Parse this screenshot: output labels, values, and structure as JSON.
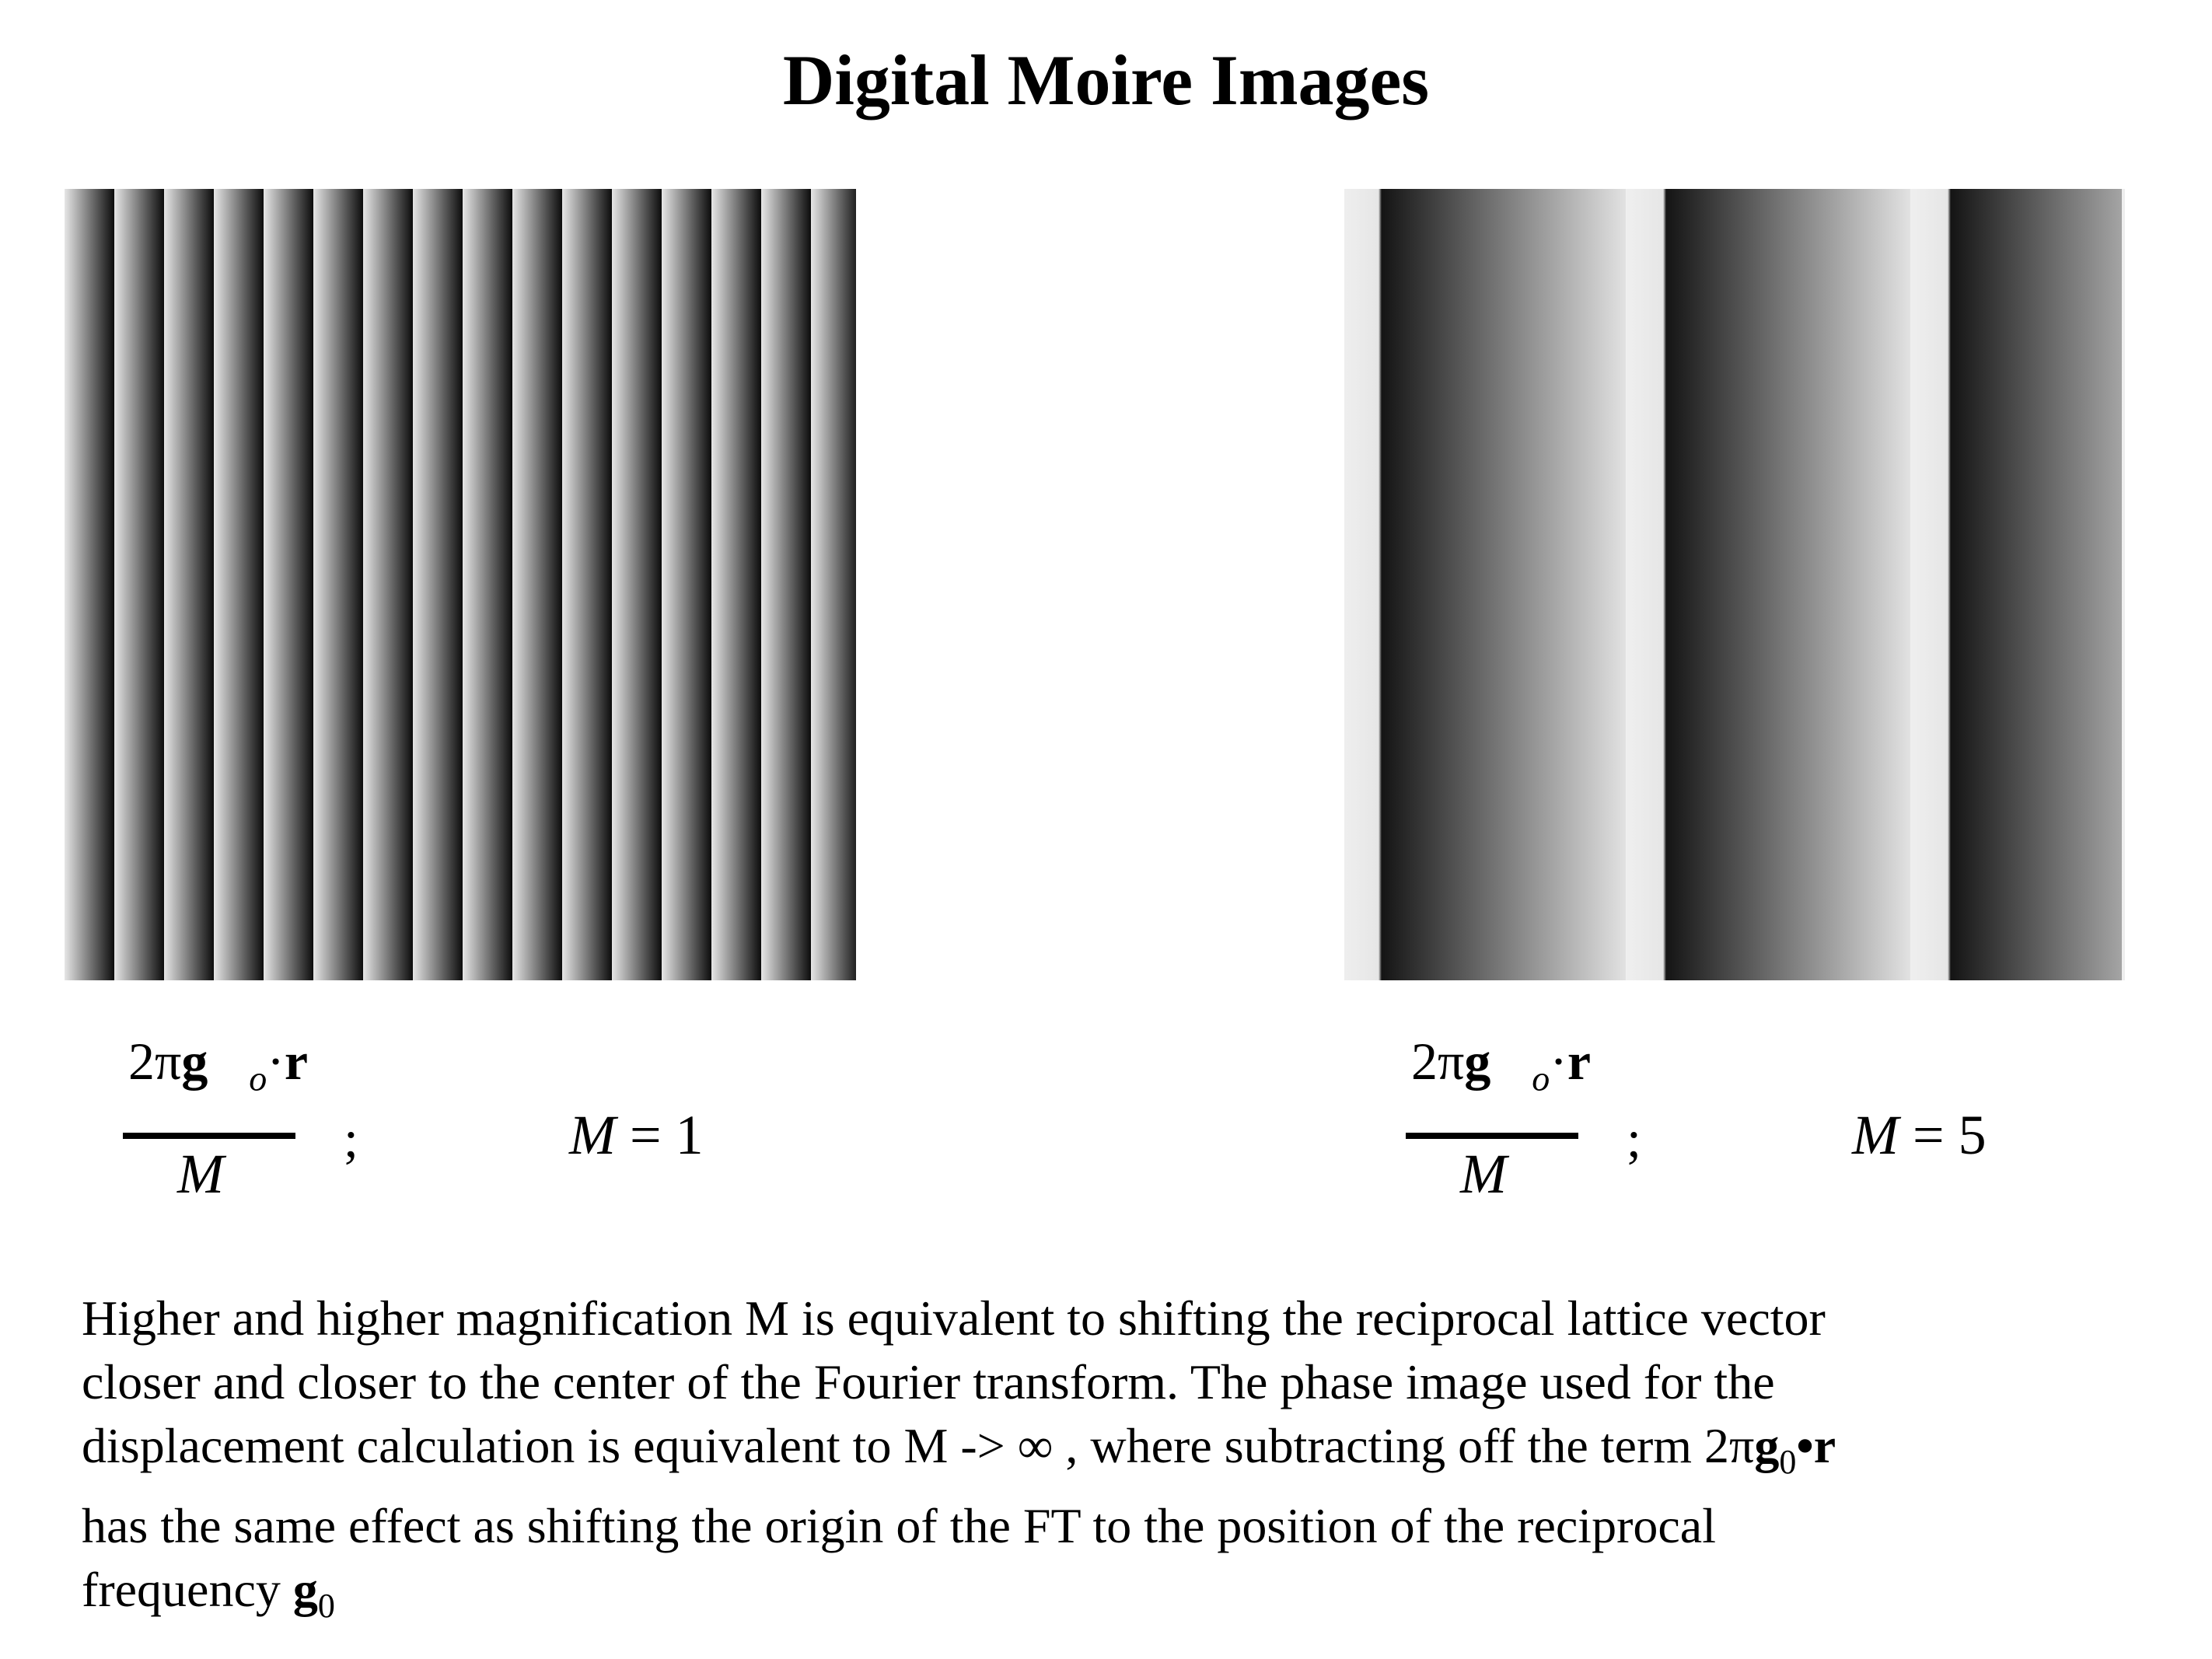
{
  "title": "Digital Moire Images",
  "panels": {
    "left": {
      "magnification_label": "1"
    },
    "right": {
      "magnification_label": "5"
    }
  },
  "formula": {
    "numerator_prefix": "2π",
    "vector_g": "g⃗",
    "subscript": "o",
    "dot": "·",
    "vector_r": "r⃗",
    "denominator": "M",
    "separator": ";",
    "m_symbol": "M",
    "equals": "="
  },
  "caption": {
    "line1": "Higher and higher magnification M is equivalent to shifting the reciprocal lattice vector",
    "line2": "closer and closer to the center of the Fourier transform. The phase image used for the",
    "line3_start": "displacement calculation is equivalent to M -> ∞ , where subtracting off the term 2π",
    "line3_g": "g",
    "line3_sub": "0",
    "line3_end": "•r",
    "line4": "has the same effect as shifting the origin of the FT to the position of the reciprocal",
    "line5_start": "frequency ",
    "line5_g": "g",
    "line5_sub": "0"
  }
}
